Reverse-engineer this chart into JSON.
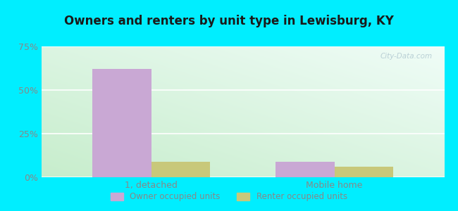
{
  "title": "Owners and renters by unit type in Lewisburg, KY",
  "categories": [
    "1, detached",
    "Mobile home"
  ],
  "owner_values": [
    62,
    9
  ],
  "renter_values": [
    9,
    6
  ],
  "owner_color": "#c9a8d4",
  "renter_color": "#c8c87a",
  "ylim": [
    0,
    75
  ],
  "yticks": [
    0,
    25,
    50,
    75
  ],
  "ytick_labels": [
    "0%",
    "25%",
    "50%",
    "75%"
  ],
  "outer_bg": "#00eeff",
  "bar_width": 0.32,
  "watermark": "City-Data.com",
  "legend_owner": "Owner occupied units",
  "legend_renter": "Renter occupied units",
  "grad_top_left": "#c8e8c0",
  "grad_bottom_right": "#eefaf4",
  "grid_color": "#ffffff",
  "tick_color": "#888888",
  "title_color": "#1a1a1a"
}
